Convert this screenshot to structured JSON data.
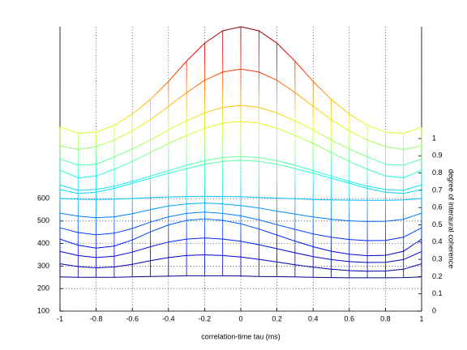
{
  "chart_data": {
    "type": "waterfall",
    "xlabel": "correlation-time tau (ms)",
    "y2label": "degree of interaural coherence",
    "x": [
      -1,
      -0.9,
      -0.8,
      -0.7,
      -0.6,
      -0.5,
      -0.4,
      -0.3,
      -0.2,
      -0.1,
      0,
      0.1,
      0.2,
      0.3,
      0.4,
      0.5,
      0.6,
      0.7,
      0.8,
      0.9,
      1
    ],
    "xlim": [
      -1,
      1
    ],
    "xticks": [
      -1,
      -0.8,
      -0.6,
      -0.4,
      -0.2,
      0,
      0.2,
      0.4,
      0.6,
      0.8,
      1
    ],
    "ylim": [
      100,
      1363
    ],
    "yticks": [
      100,
      200,
      300,
      400,
      500,
      600
    ],
    "y2lim": [
      0,
      1.648
    ],
    "y2ticks": [
      0,
      0.1,
      0.2,
      0.3,
      0.4,
      0.5,
      0.6,
      0.7,
      0.8,
      0.9,
      1
    ],
    "grid": true,
    "colormap": "jet",
    "clim": [
      250,
      1363
    ],
    "series": [
      {
        "values": [
          917,
          890,
          895,
          925,
          975,
          1040,
          1120,
          1210,
          1290,
          1345,
          1363,
          1345,
          1290,
          1210,
          1120,
          1040,
          975,
          925,
          895,
          890,
          917
        ]
      },
      {
        "values": [
          834,
          818,
          830,
          860,
          900,
          950,
          1010,
          1070,
          1125,
          1162,
          1175,
          1162,
          1125,
          1070,
          1010,
          950,
          900,
          860,
          830,
          818,
          834
        ]
      },
      {
        "values": [
          776,
          748,
          752,
          785,
          820,
          860,
          905,
          945,
          980,
          1005,
          1014,
          1005,
          980,
          945,
          905,
          860,
          820,
          785,
          752,
          748,
          776
        ]
      },
      {
        "values": [
          726,
          692,
          700,
          730,
          765,
          805,
          845,
          880,
          912,
          935,
          942,
          935,
          912,
          880,
          845,
          805,
          765,
          730,
          700,
          692,
          726
        ]
      },
      {
        "values": [
          661,
          636,
          640,
          655,
          676,
          700,
          724,
          748,
          768,
          782,
          787,
          782,
          768,
          748,
          724,
          700,
          676,
          655,
          640,
          636,
          661
        ]
      },
      {
        "values": [
          640,
          622,
          628,
          645,
          668,
          690,
          712,
          733,
          752,
          765,
          770,
          765,
          752,
          733,
          712,
          690,
          668,
          645,
          628,
          622,
          640
        ]
      },
      {
        "values": [
          600,
          597,
          596,
          597,
          600,
          604,
          607,
          609,
          610,
          609,
          608,
          605,
          602,
          599,
          596,
          594,
          593,
          592,
          592,
          594,
          600
        ]
      },
      {
        "values": [
          535,
          522,
          515,
          519,
          533,
          551,
          567,
          576,
          580,
          576,
          569,
          558,
          544,
          531,
          518,
          508,
          501,
          498,
          499,
          508,
          535
        ]
      },
      {
        "values": [
          470,
          449,
          439,
          446,
          467,
          495,
          519,
          534,
          540,
          534,
          523,
          505,
          484,
          463,
          443,
          428,
          418,
          413,
          414,
          428,
          470
        ]
      },
      {
        "values": [
          420,
          393,
          380,
          389,
          416,
          452,
          483,
          503,
          510,
          503,
          488,
          465,
          438,
          411,
          386,
          366,
          353,
          346,
          348,
          366,
          420
        ]
      },
      {
        "values": [
          365,
          347,
          338,
          344,
          362,
          386,
          407,
          420,
          425,
          420,
          410,
          395,
          377,
          359,
          342,
          329,
          320,
          316,
          317,
          329,
          365
        ]
      },
      {
        "values": [
          310,
          298,
          292,
          296,
          308,
          324,
          338,
          347,
          350,
          347,
          340,
          330,
          318,
          306,
          295,
          286,
          280,
          277,
          278,
          286,
          310
        ]
      },
      {
        "values": [
          252,
          250,
          250,
          250,
          252,
          254,
          255,
          257,
          257,
          257,
          256,
          254,
          253,
          252,
          250,
          249,
          248,
          248,
          248,
          249,
          252
        ]
      }
    ]
  }
}
